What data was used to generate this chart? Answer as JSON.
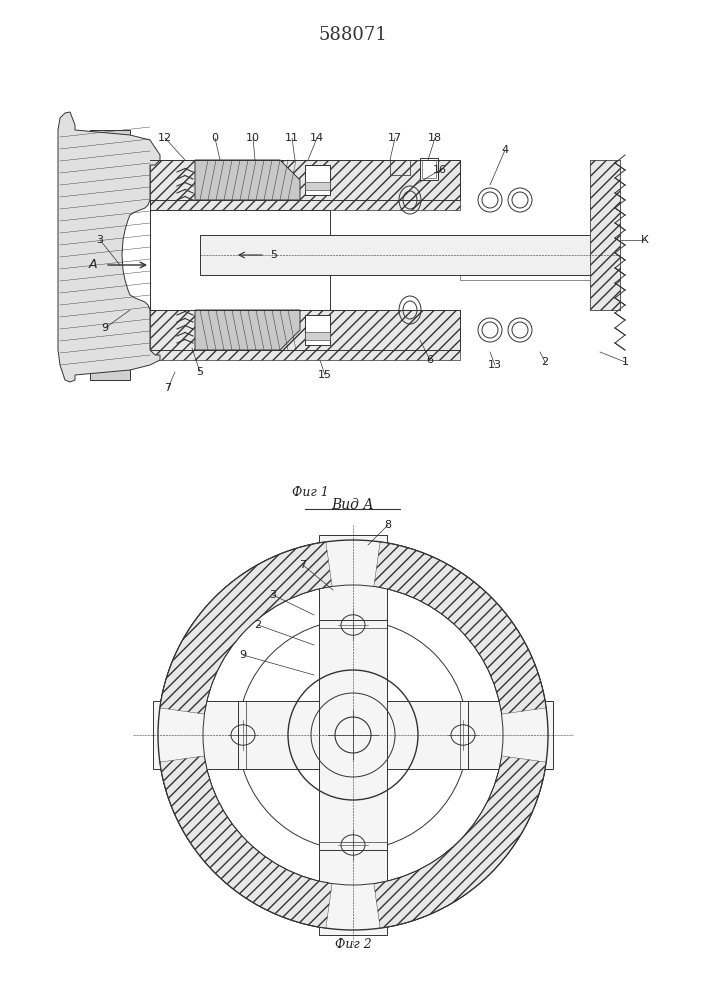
{
  "title": "588071",
  "fig1_caption": "Фиг 1",
  "fig2_caption": "Фиг 2",
  "view_label": "Вид А",
  "bg_color": "#ffffff",
  "line_color": "#333333",
  "hatch_color": "#555555",
  "title_fontsize": 13,
  "caption_fontsize": 9,
  "label_fontsize": 8
}
